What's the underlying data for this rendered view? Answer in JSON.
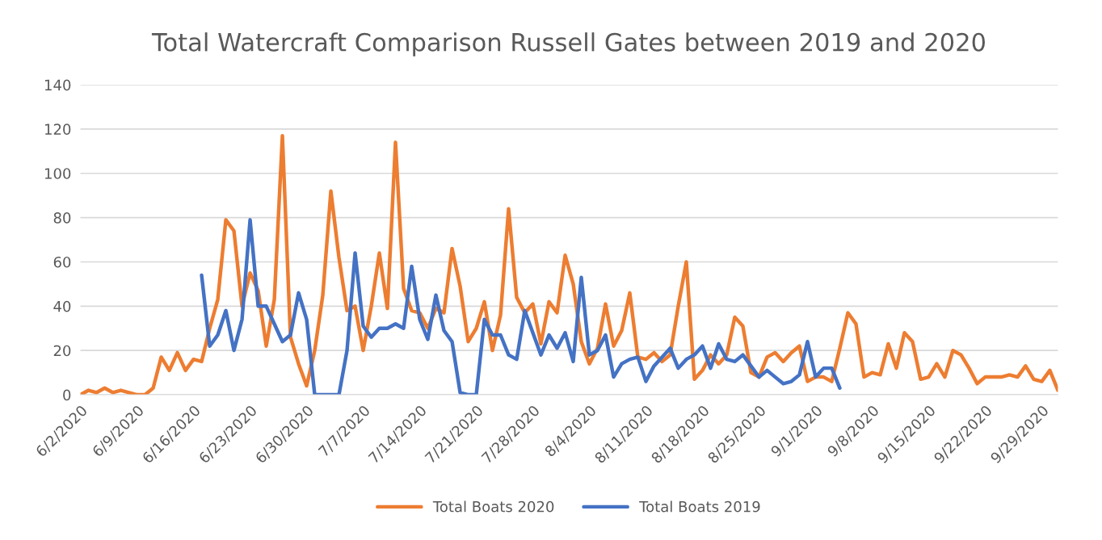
{
  "chart_data": {
    "type": "line",
    "title": "Total Watercraft Comparison Russell Gates between 2019 and 2020",
    "x": [
      "2020-06-02",
      "2020-06-03",
      "2020-06-04",
      "2020-06-05",
      "2020-06-06",
      "2020-06-07",
      "2020-06-08",
      "2020-06-09",
      "2020-06-10",
      "2020-06-11",
      "2020-06-12",
      "2020-06-13",
      "2020-06-14",
      "2020-06-15",
      "2020-06-16",
      "2020-06-17",
      "2020-06-18",
      "2020-06-19",
      "2020-06-20",
      "2020-06-21",
      "2020-06-22",
      "2020-06-23",
      "2020-06-24",
      "2020-06-25",
      "2020-06-26",
      "2020-06-27",
      "2020-06-28",
      "2020-06-29",
      "2020-06-30",
      "2020-07-01",
      "2020-07-02",
      "2020-07-03",
      "2020-07-04",
      "2020-07-05",
      "2020-07-06",
      "2020-07-07",
      "2020-07-08",
      "2020-07-09",
      "2020-07-10",
      "2020-07-11",
      "2020-07-12",
      "2020-07-13",
      "2020-07-14",
      "2020-07-15",
      "2020-07-16",
      "2020-07-17",
      "2020-07-18",
      "2020-07-19",
      "2020-07-20",
      "2020-07-21",
      "2020-07-22",
      "2020-07-23",
      "2020-07-24",
      "2020-07-25",
      "2020-07-26",
      "2020-07-27",
      "2020-07-28",
      "2020-07-29",
      "2020-07-30",
      "2020-07-31",
      "2020-08-01",
      "2020-08-02",
      "2020-08-03",
      "2020-08-04",
      "2020-08-05",
      "2020-08-06",
      "2020-08-07",
      "2020-08-08",
      "2020-08-09",
      "2020-08-10",
      "2020-08-11",
      "2020-08-12",
      "2020-08-13",
      "2020-08-14",
      "2020-08-15",
      "2020-08-16",
      "2020-08-17",
      "2020-08-18",
      "2020-08-19",
      "2020-08-20",
      "2020-08-21",
      "2020-08-22",
      "2020-08-23",
      "2020-08-24",
      "2020-08-25",
      "2020-08-26",
      "2020-08-27",
      "2020-08-28",
      "2020-08-29",
      "2020-08-30",
      "2020-08-31",
      "2020-09-01",
      "2020-09-02",
      "2020-09-03",
      "2020-09-04",
      "2020-09-05",
      "2020-09-06",
      "2020-09-07",
      "2020-09-08",
      "2020-09-09",
      "2020-09-10",
      "2020-09-11",
      "2020-09-12",
      "2020-09-13",
      "2020-09-14",
      "2020-09-15",
      "2020-09-16",
      "2020-09-17",
      "2020-09-18",
      "2020-09-19",
      "2020-09-20",
      "2020-09-21",
      "2020-09-22",
      "2020-09-23",
      "2020-09-24",
      "2020-09-25",
      "2020-09-26",
      "2020-09-27",
      "2020-09-28",
      "2020-09-29",
      "2020-09-30",
      "2020-10-01"
    ],
    "series": [
      {
        "name": "Total Boats 2020",
        "color": "#ed7d31",
        "values": [
          0,
          2,
          1,
          3,
          1,
          2,
          1,
          0,
          0,
          3,
          17,
          11,
          19,
          11,
          16,
          15,
          30,
          43,
          79,
          74,
          40,
          55,
          47,
          22,
          43,
          117,
          26,
          14,
          4,
          20,
          45,
          92,
          62,
          38,
          40,
          20,
          40,
          64,
          39,
          114,
          48,
          38,
          37,
          30,
          39,
          37,
          66,
          49,
          24,
          30,
          42,
          20,
          36,
          84,
          44,
          37,
          41,
          23,
          42,
          37,
          63,
          50,
          24,
          14,
          21,
          41,
          22,
          29,
          46,
          17,
          16,
          19,
          15,
          18,
          40,
          60,
          7,
          11,
          18,
          14,
          18,
          35,
          31,
          10,
          8,
          17,
          19,
          15,
          19,
          22,
          6,
          8,
          8,
          6,
          21,
          37,
          32,
          8,
          10,
          9,
          23,
          12,
          28,
          24,
          7,
          8,
          14,
          8,
          20,
          18,
          12,
          5,
          8,
          8,
          8,
          9,
          8,
          13,
          7,
          6,
          11,
          2
        ]
      },
      {
        "name": "Total Boats 2019",
        "color": "#4472c4",
        "x": [
          "2020-06-17",
          "2020-06-18",
          "2020-06-19",
          "2020-06-20",
          "2020-06-21",
          "2020-06-22",
          "2020-06-23",
          "2020-06-24",
          "2020-06-25",
          "2020-06-26",
          "2020-06-27",
          "2020-06-28",
          "2020-06-29",
          "2020-06-30",
          "2020-07-01",
          "2020-07-02",
          "2020-07-03",
          "2020-07-04",
          "2020-07-05",
          "2020-07-06",
          "2020-07-07",
          "2020-07-08",
          "2020-07-09",
          "2020-07-10",
          "2020-07-11",
          "2020-07-12",
          "2020-07-13",
          "2020-07-14",
          "2020-07-15",
          "2020-07-16",
          "2020-07-17",
          "2020-07-18",
          "2020-07-19",
          "2020-07-20",
          "2020-07-21",
          "2020-07-22",
          "2020-07-23",
          "2020-07-24",
          "2020-07-25",
          "2020-07-26",
          "2020-07-27",
          "2020-07-28",
          "2020-07-29",
          "2020-07-30",
          "2020-07-31",
          "2020-08-01",
          "2020-08-02",
          "2020-08-03",
          "2020-08-04",
          "2020-08-05",
          "2020-08-06",
          "2020-08-07",
          "2020-08-08",
          "2020-08-09",
          "2020-08-10",
          "2020-08-11",
          "2020-08-12",
          "2020-08-13",
          "2020-08-14",
          "2020-08-15",
          "2020-08-16",
          "2020-08-17",
          "2020-08-18",
          "2020-08-19",
          "2020-08-20",
          "2020-08-21",
          "2020-08-22",
          "2020-08-23",
          "2020-08-24",
          "2020-08-25",
          "2020-08-26",
          "2020-08-27",
          "2020-08-28",
          "2020-08-29",
          "2020-08-30",
          "2020-08-31",
          "2020-09-01",
          "2020-09-02",
          "2020-09-03",
          "2020-09-04"
        ],
        "values": [
          54,
          22,
          27,
          38,
          20,
          34,
          79,
          40,
          40,
          32,
          24,
          27,
          46,
          34,
          0,
          0,
          0,
          0,
          20,
          64,
          31,
          26,
          30,
          30,
          32,
          30,
          58,
          34,
          25,
          45,
          29,
          24,
          1,
          0,
          0,
          34,
          27,
          27,
          18,
          16,
          38,
          28,
          18,
          27,
          21,
          28,
          15,
          53,
          18,
          20,
          27,
          8,
          14,
          16,
          17,
          6,
          13,
          17,
          21,
          12,
          16,
          18,
          22,
          12,
          23,
          16,
          15,
          18,
          13,
          8,
          11,
          8,
          5,
          6,
          9,
          24,
          8,
          12,
          12,
          3
        ]
      }
    ],
    "xlim": [
      "2020-06-02",
      "2020-10-01"
    ],
    "xticks": [
      {
        "value": "2020-06-02",
        "label": "6/2/2020"
      },
      {
        "value": "2020-06-09",
        "label": "6/9/2020"
      },
      {
        "value": "2020-06-16",
        "label": "6/16/2020"
      },
      {
        "value": "2020-06-23",
        "label": "6/23/2020"
      },
      {
        "value": "2020-06-30",
        "label": "6/30/2020"
      },
      {
        "value": "2020-07-07",
        "label": "7/7/2020"
      },
      {
        "value": "2020-07-14",
        "label": "7/14/2020"
      },
      {
        "value": "2020-07-21",
        "label": "7/21/2020"
      },
      {
        "value": "2020-07-28",
        "label": "7/28/2020"
      },
      {
        "value": "2020-08-04",
        "label": "8/4/2020"
      },
      {
        "value": "2020-08-11",
        "label": "8/11/2020"
      },
      {
        "value": "2020-08-18",
        "label": "8/18/2020"
      },
      {
        "value": "2020-08-25",
        "label": "8/25/2020"
      },
      {
        "value": "2020-09-01",
        "label": "9/1/2020"
      },
      {
        "value": "2020-09-08",
        "label": "9/8/2020"
      },
      {
        "value": "2020-09-15",
        "label": "9/15/2020"
      },
      {
        "value": "2020-09-22",
        "label": "9/22/2020"
      },
      {
        "value": "2020-09-29",
        "label": "9/29/2020"
      }
    ],
    "ylim": [
      0,
      140
    ],
    "yticks": [
      0,
      20,
      40,
      60,
      80,
      100,
      120,
      140
    ],
    "grid": "y",
    "legend": "bottom",
    "line_style": "solid",
    "marker": "none"
  }
}
